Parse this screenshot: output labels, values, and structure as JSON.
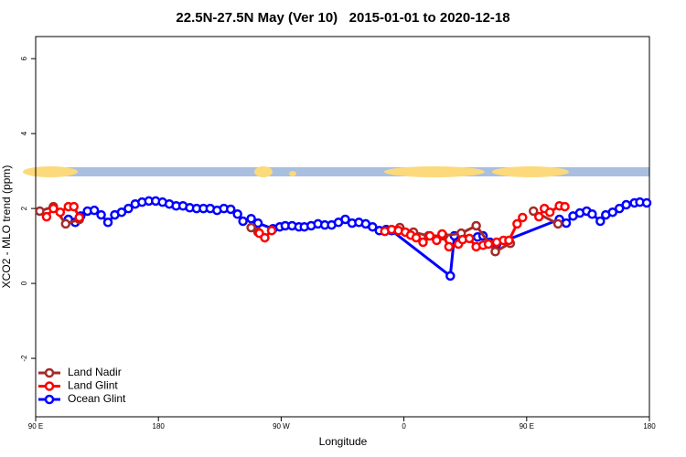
{
  "chart_data": {
    "type": "line",
    "title": "22.5N-27.5N May (Ver 10)   2015-01-01 to 2020-12-18",
    "x_label": "Longitude",
    "y_label": "XCO2 - MLO trend (ppm)",
    "xlim": [
      90,
      540
    ],
    "xticks": [
      {
        "value": 90,
        "label": "90 E"
      },
      {
        "value": 180,
        "label": "180"
      },
      {
        "value": 270,
        "label": "90 W"
      },
      {
        "value": 360,
        "label": "0"
      },
      {
        "value": 450,
        "label": "90 E"
      },
      {
        "value": 540,
        "label": "180"
      }
    ],
    "ylim": [
      -3.56,
      6.59
    ],
    "yticks": [
      -2,
      0,
      2,
      4,
      6
    ],
    "legend": "bottom-left",
    "series": [
      {
        "name": "Ocean Glint",
        "color": "#0000ff",
        "x": [
          114,
          119,
          123,
          128,
          133,
          138,
          143,
          148,
          153,
          158,
          163,
          168,
          173,
          178,
          183,
          188,
          193,
          198,
          203,
          208,
          213,
          218,
          223,
          228,
          233,
          238,
          242,
          248,
          253,
          264,
          269,
          273,
          278,
          283,
          287,
          292,
          297,
          302,
          307,
          312,
          317,
          322,
          327,
          332,
          337,
          342,
          347,
          351,
          394,
          397,
          414,
          418,
          423,
          428,
          474,
          479,
          484,
          489,
          494,
          498,
          504,
          508,
          513,
          518,
          523,
          529,
          533,
          538
        ],
        "values": [
          1.71,
          1.63,
          1.8,
          1.93,
          1.95,
          1.83,
          1.63,
          1.83,
          1.9,
          2.0,
          2.12,
          2.17,
          2.2,
          2.2,
          2.17,
          2.12,
          2.07,
          2.07,
          2.02,
          2.0,
          2.0,
          2.0,
          1.95,
          2.0,
          1.98,
          1.85,
          1.66,
          1.73,
          1.61,
          1.46,
          1.51,
          1.54,
          1.54,
          1.51,
          1.51,
          1.54,
          1.59,
          1.56,
          1.56,
          1.63,
          1.71,
          1.61,
          1.63,
          1.59,
          1.51,
          1.41,
          1.44,
          1.41,
          0.2,
          1.27,
          1.24,
          1.27,
          1.1,
          1.05,
          1.71,
          1.61,
          1.8,
          1.88,
          1.93,
          1.85,
          1.66,
          1.83,
          1.9,
          2.0,
          2.1,
          2.15,
          2.17,
          2.15
        ]
      },
      {
        "name": "Land Nadir",
        "color": "#a52a2a",
        "x": [
          93,
          103,
          112,
          122,
          null,
          248,
          253,
          null,
          357,
          367,
          378,
          389,
          402,
          413,
          427,
          438,
          null,
          455,
          473
        ],
        "values": [
          1.93,
          2.05,
          1.59,
          1.71,
          null,
          1.49,
          1.37,
          null,
          1.49,
          1.37,
          1.27,
          1.27,
          1.34,
          1.54,
          0.85,
          1.07,
          null,
          1.93,
          1.59
        ]
      },
      {
        "name": "Land Glint",
        "color": "#ff0000",
        "x": [
          98,
          103,
          108,
          114,
          118,
          122,
          null,
          254,
          258,
          263,
          null,
          346,
          351,
          356,
          361,
          365,
          369,
          374,
          379,
          384,
          388,
          393,
          400,
          403,
          408,
          413,
          418,
          422,
          428,
          433,
          437,
          443,
          447,
          null,
          459,
          463,
          467,
          474,
          478
        ],
        "values": [
          1.78,
          2.0,
          1.9,
          2.05,
          2.05,
          1.76,
          null,
          1.34,
          1.22,
          1.41,
          null,
          1.39,
          1.44,
          1.41,
          1.37,
          1.29,
          1.22,
          1.1,
          1.27,
          1.15,
          1.32,
          0.98,
          1.05,
          1.17,
          1.2,
          0.98,
          1.02,
          1.05,
          1.1,
          1.15,
          1.15,
          1.59,
          1.76,
          null,
          1.78,
          2.0,
          1.9,
          2.07,
          2.05
        ]
      }
    ]
  }
}
